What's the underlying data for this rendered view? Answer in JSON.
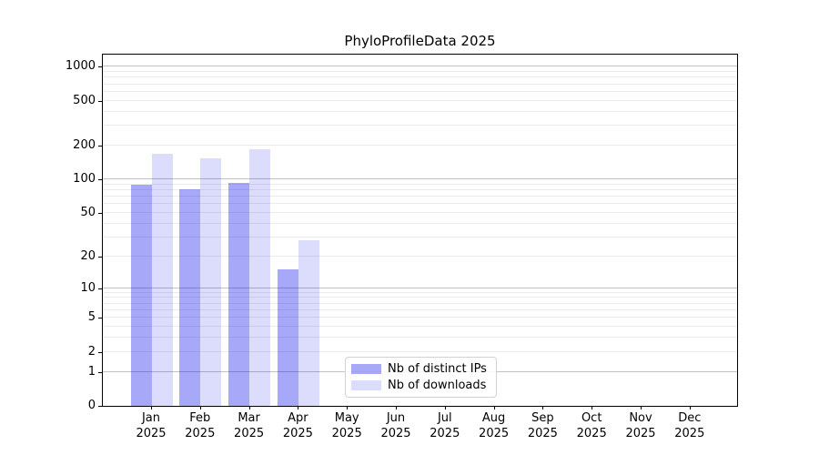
{
  "title": "PhyloProfileData 2025",
  "legend": {
    "items": [
      {
        "label": "Nb of distinct IPs",
        "color": "rgba(0,0,235,0.34)"
      },
      {
        "label": "Nb of downloads",
        "color": "rgba(10,10,235,0.14)"
      }
    ]
  },
  "colors": {
    "distinct_ips_bar": "rgba(0,0,235,0.34)",
    "downloads_bar": "rgba(10,10,235,0.14)",
    "axis": "#000000",
    "grid_major": "#c2c2c2",
    "grid_minor": "#ebebeb"
  },
  "chart_data": {
    "type": "bar",
    "title": "PhyloProfileData 2025",
    "categories": [
      "Jan 2025",
      "Feb 2025",
      "Mar 2025",
      "Apr 2025",
      "May 2025",
      "Jun 2025",
      "Jul 2025",
      "Aug 2025",
      "Sep 2025",
      "Oct 2025",
      "Nov 2025",
      "Dec 2025"
    ],
    "series": [
      {
        "name": "Nb of distinct IPs",
        "values": [
          90,
          82,
          93,
          15,
          null,
          null,
          null,
          null,
          null,
          null,
          null,
          null
        ]
      },
      {
        "name": "Nb of downloads",
        "values": [
          169,
          155,
          185,
          28,
          null,
          null,
          null,
          null,
          null,
          null,
          null,
          null
        ]
      }
    ],
    "xlabel": "",
    "ylabel": "",
    "yscale": "log1p",
    "yticks": [
      0,
      1,
      2,
      5,
      10,
      20,
      50,
      100,
      200,
      500,
      1000
    ],
    "ylim": [
      0,
      1280
    ],
    "grid": "horizontal-log-minors",
    "legend_position": "inside-bottom-center"
  }
}
